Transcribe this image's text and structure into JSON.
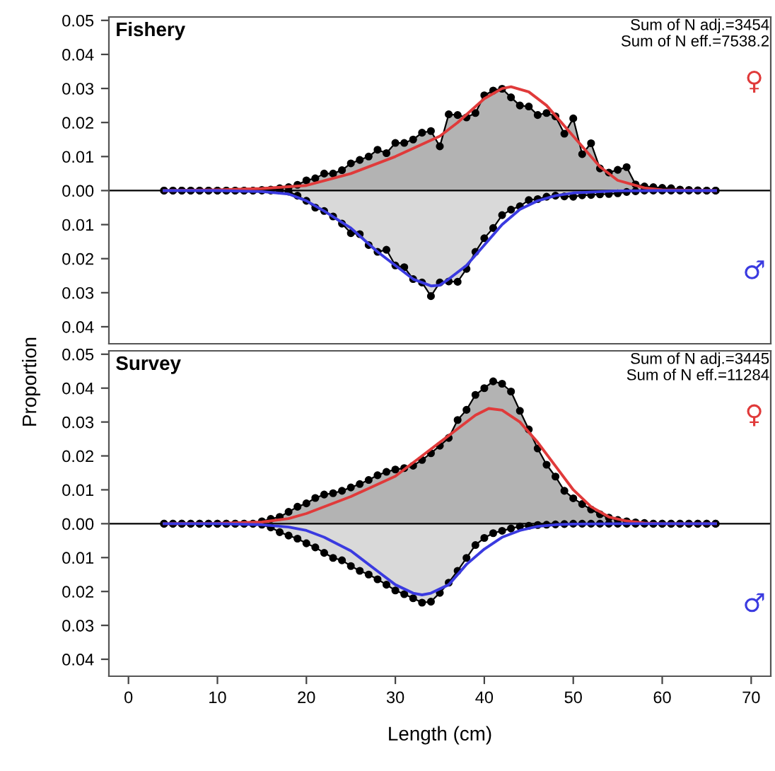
{
  "chart_data": [
    {
      "type": "area",
      "title": "Fishery",
      "ylabel": "Proportion",
      "annotations": [
        "Sum of N adj.=3454",
        "Sum of N eff.=7538.2"
      ],
      "x": [
        4,
        5,
        6,
        7,
        8,
        9,
        10,
        11,
        12,
        13,
        14,
        15,
        16,
        17,
        18,
        19,
        20,
        21,
        22,
        23,
        24,
        25,
        26,
        27,
        28,
        29,
        30,
        31,
        32,
        33,
        34,
        35,
        36,
        37,
        38,
        39,
        40,
        41,
        42,
        43,
        44,
        45,
        46,
        47,
        48,
        49,
        50,
        51,
        52,
        53,
        54,
        55,
        56,
        57,
        58,
        59,
        60,
        61,
        62,
        63,
        64,
        65,
        66
      ],
      "series": [
        {
          "color": "#b3b3b3",
          "marker": "circle",
          "values": [
            0,
            0,
            0,
            0,
            0,
            0,
            0,
            0,
            0,
            0,
            0,
            0.0002,
            0.0003,
            0.0007,
            0.001,
            0.0017,
            0.003,
            0.0036,
            0.005,
            0.005,
            0.006,
            0.008,
            0.009,
            0.01,
            0.012,
            0.011,
            0.014,
            0.014,
            0.015,
            0.017,
            0.0175,
            0.013,
            0.0224,
            0.0222,
            0.0215,
            0.0228,
            0.028,
            0.0294,
            0.0299,
            0.0274,
            0.025,
            0.0247,
            0.0222,
            0.0228,
            0.0218,
            0.0167,
            0.0212,
            0.0107,
            0.0139,
            0.0065,
            0.0053,
            0.0061,
            0.0069,
            0.0018,
            0.0012,
            0.001,
            0.0008,
            0.0007,
            0.0003,
            0.0002,
            0.0001,
            0,
            0
          ]
        },
        {
          "color": "#d9d9d9",
          "marker": "circle",
          "values": [
            0,
            0,
            0,
            0,
            0,
            0,
            0,
            0,
            0,
            0,
            0,
            0,
            0,
            0,
            -0.0003,
            -0.0015,
            -0.003,
            -0.005,
            -0.006,
            -0.0076,
            -0.0097,
            -0.0125,
            -0.0128,
            -0.016,
            -0.018,
            -0.0174,
            -0.022,
            -0.0225,
            -0.026,
            -0.027,
            -0.031,
            -0.027,
            -0.0267,
            -0.0268,
            -0.023,
            -0.018,
            -0.014,
            -0.011,
            -0.0072,
            -0.0056,
            -0.0046,
            -0.0028,
            -0.0025,
            -0.0018,
            -0.0015,
            -0.0017,
            -0.0018,
            -0.0014,
            -0.0013,
            -0.0011,
            -0.001,
            -0.0008,
            -0.0004,
            -0.0002,
            0,
            0,
            0,
            0,
            0,
            0,
            0,
            0,
            0
          ]
        },
        {
          "type": "line",
          "name": "♀",
          "color": "#e03a3a",
          "x": [
            4,
            10,
            15,
            20,
            25,
            30,
            35,
            37,
            40,
            42,
            43,
            45,
            47,
            50,
            53,
            55,
            58,
            60,
            66
          ],
          "values": [
            0,
            0.0002,
            0.0006,
            0.0015,
            0.005,
            0.01,
            0.016,
            0.02,
            0.027,
            0.03,
            0.0305,
            0.029,
            0.025,
            0.016,
            0.007,
            0.003,
            0.0008,
            0.0002,
            0
          ]
        },
        {
          "type": "line",
          "name": "♂",
          "color": "#3a3ae0",
          "x": [
            4,
            10,
            15,
            18,
            20,
            22,
            25,
            28,
            30,
            32,
            34,
            35,
            36,
            38,
            40,
            42,
            44,
            46,
            48,
            50,
            55,
            60,
            66
          ],
          "values": [
            0,
            0,
            -0.0003,
            -0.001,
            -0.003,
            -0.006,
            -0.011,
            -0.018,
            -0.022,
            -0.026,
            -0.028,
            -0.0278,
            -0.026,
            -0.022,
            -0.016,
            -0.01,
            -0.0055,
            -0.003,
            -0.0015,
            -0.0007,
            -0.0001,
            0,
            0
          ]
        }
      ],
      "xlim": [
        -2.2,
        72.2
      ],
      "ylim": [
        -0.045,
        0.051
      ],
      "yticks": [
        {
          "value": 0.05,
          "label": "0.05"
        },
        {
          "value": 0.04,
          "label": "0.04"
        },
        {
          "value": 0.03,
          "label": "0.03"
        },
        {
          "value": 0.02,
          "label": "0.02"
        },
        {
          "value": 0.01,
          "label": "0.01"
        },
        {
          "value": 0,
          "label": "0.00"
        },
        {
          "value": -0.01,
          "label": "0.01"
        },
        {
          "value": -0.02,
          "label": "0.02"
        },
        {
          "value": -0.03,
          "label": "0.03"
        },
        {
          "value": -0.04,
          "label": "0.04"
        }
      ],
      "ref_lines": [
        {
          "axis": "y",
          "value": 0
        }
      ],
      "tick_labels": "y",
      "grid": false,
      "legend": false
    },
    {
      "type": "area",
      "title": "Survey",
      "xlabel": "Length (cm)",
      "annotations": [
        "Sum of N adj.=3445",
        "Sum of N eff.=11284"
      ],
      "x": [
        4,
        5,
        6,
        7,
        8,
        9,
        10,
        11,
        12,
        13,
        14,
        15,
        16,
        17,
        18,
        19,
        20,
        21,
        22,
        23,
        24,
        25,
        26,
        27,
        28,
        29,
        30,
        31,
        32,
        33,
        34,
        35,
        36,
        37,
        38,
        39,
        40,
        41,
        42,
        43,
        44,
        45,
        46,
        47,
        48,
        49,
        50,
        51,
        52,
        53,
        54,
        55,
        56,
        57,
        58,
        59,
        60,
        61,
        62,
        63,
        64,
        65,
        66
      ],
      "series": [
        {
          "color": "#b3b3b3",
          "marker": "circle",
          "values": [
            0,
            0,
            0,
            0,
            0,
            0,
            0,
            0,
            0,
            0,
            0,
            0.0007,
            0.0014,
            0.002,
            0.0035,
            0.005,
            0.006,
            0.0076,
            0.0086,
            0.009,
            0.0097,
            0.0107,
            0.0117,
            0.0129,
            0.0143,
            0.0153,
            0.016,
            0.0164,
            0.0171,
            0.0188,
            0.0208,
            0.023,
            0.0253,
            0.0306,
            0.0336,
            0.038,
            0.04,
            0.042,
            0.0413,
            0.039,
            0.0333,
            0.0278,
            0.0222,
            0.0174,
            0.0139,
            0.0097,
            0.0075,
            0.0058,
            0.0042,
            0.0028,
            0.0018,
            0.0011,
            0.0007,
            0.0004,
            0.0002,
            0,
            0,
            0,
            0,
            0,
            0,
            0,
            0
          ]
        },
        {
          "color": "#d9d9d9",
          "marker": "circle",
          "values": [
            0,
            0,
            0,
            0,
            0,
            0,
            0,
            0,
            0,
            0,
            0,
            -0.0003,
            -0.0011,
            -0.0025,
            -0.0035,
            -0.0044,
            -0.0058,
            -0.007,
            -0.0086,
            -0.0101,
            -0.0108,
            -0.0125,
            -0.0139,
            -0.015,
            -0.0164,
            -0.018,
            -0.0197,
            -0.0208,
            -0.022,
            -0.0233,
            -0.023,
            -0.0204,
            -0.0174,
            -0.0139,
            -0.0101,
            -0.0063,
            -0.0042,
            -0.0028,
            -0.0021,
            -0.0014,
            -0.0008,
            -0.0006,
            -0.0004,
            -0.0003,
            -0.0002,
            -0.0001,
            0,
            0,
            0,
            0,
            0,
            0,
            0,
            0,
            0,
            0,
            0,
            0,
            0,
            0,
            0,
            0,
            0
          ]
        },
        {
          "type": "line",
          "name": "♀",
          "color": "#e03a3a",
          "x": [
            4,
            10,
            15,
            18,
            20,
            25,
            30,
            33,
            35,
            37,
            39,
            40.5,
            42,
            44,
            46,
            48,
            50,
            52,
            54,
            56,
            58,
            60,
            66
          ],
          "values": [
            0,
            0.0001,
            0.0005,
            0.0015,
            0.003,
            0.008,
            0.014,
            0.02,
            0.024,
            0.028,
            0.032,
            0.034,
            0.0335,
            0.03,
            0.024,
            0.017,
            0.01,
            0.005,
            0.002,
            0.0008,
            0.0002,
            0,
            0
          ]
        },
        {
          "type": "line",
          "name": "♂",
          "color": "#3a3ae0",
          "x": [
            4,
            10,
            15,
            18,
            20,
            22,
            25,
            28,
            30,
            32,
            33,
            34,
            36,
            38,
            40,
            42,
            44,
            46,
            48,
            50,
            55,
            66
          ],
          "values": [
            0,
            0,
            -0.0003,
            -0.001,
            -0.002,
            -0.004,
            -0.008,
            -0.014,
            -0.018,
            -0.0205,
            -0.021,
            -0.0205,
            -0.018,
            -0.012,
            -0.0075,
            -0.004,
            -0.002,
            -0.0008,
            -0.0003,
            -0.0001,
            0,
            0
          ]
        }
      ],
      "xlim": [
        -2.2,
        72.2
      ],
      "ylim": [
        -0.045,
        0.051
      ],
      "xticks": [
        0,
        10,
        20,
        30,
        40,
        50,
        60,
        70
      ],
      "yticks": [
        {
          "value": 0.05,
          "label": "0.05"
        },
        {
          "value": 0.04,
          "label": "0.04"
        },
        {
          "value": 0.03,
          "label": "0.03"
        },
        {
          "value": 0.02,
          "label": "0.02"
        },
        {
          "value": 0.01,
          "label": "0.01"
        },
        {
          "value": 0,
          "label": "0.00"
        },
        {
          "value": -0.01,
          "label": "0.01"
        },
        {
          "value": -0.02,
          "label": "0.02"
        },
        {
          "value": -0.03,
          "label": "0.03"
        },
        {
          "value": -0.04,
          "label": "0.04"
        }
      ],
      "ref_lines": [
        {
          "axis": "y",
          "value": 0
        }
      ],
      "grid": false,
      "legend": false
    }
  ]
}
